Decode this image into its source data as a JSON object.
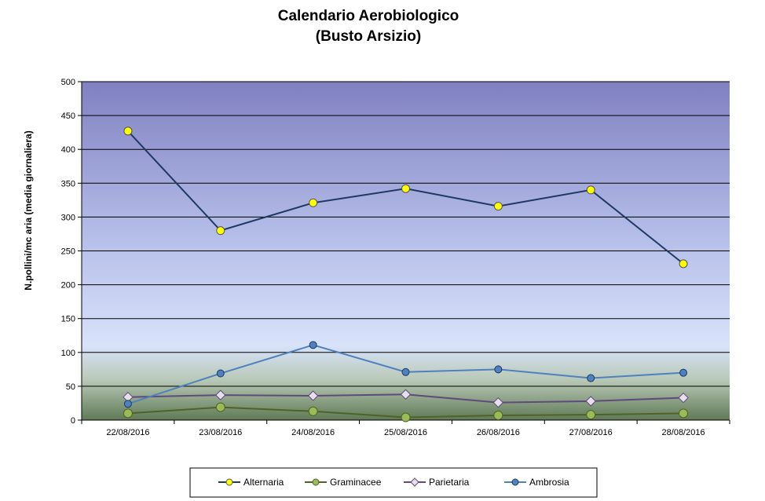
{
  "chart_data": {
    "type": "line",
    "title": "Calendario Aerobiologico",
    "subtitle": "(Busto Arsizio)",
    "xlabel": "",
    "ylabel": "N.pollini/mc aria (media giornaliera)",
    "ylim": [
      0,
      500
    ],
    "yticks": [
      "0",
      "50",
      "100",
      "150",
      "200",
      "250",
      "300",
      "350",
      "400",
      "450",
      "500"
    ],
    "categories": [
      "22/08/2016",
      "23/08/2016",
      "24/08/2016",
      "25/08/2016",
      "26/08/2016",
      "27/08/2016",
      "28/08/2016"
    ],
    "grid": true,
    "legend_position": "bottom",
    "series": [
      {
        "name": "Alternaria",
        "values": [
          427,
          280,
          321,
          342,
          316,
          340,
          231
        ],
        "line_color": "#1f3864",
        "marker": "circle",
        "marker_fill": "#ffff00",
        "marker_stroke": "#555555"
      },
      {
        "name": "Graminacee",
        "values": [
          10,
          19,
          13,
          4,
          7,
          8,
          10
        ],
        "line_color": "#4f6228",
        "marker": "circle",
        "marker_fill": "#9bbb59",
        "marker_stroke": "#4f6228"
      },
      {
        "name": "Parietaria",
        "values": [
          34,
          37,
          36,
          38,
          26,
          28,
          33
        ],
        "line_color": "#604a7b",
        "marker": "diamond",
        "marker_fill": "#e6e0ec",
        "marker_stroke": "#604a7b"
      },
      {
        "name": "Ambrosia",
        "values": [
          24,
          69,
          111,
          71,
          75,
          62,
          70
        ],
        "line_color": "#4f81bd",
        "marker": "circle",
        "marker_fill": "#4f81bd",
        "marker_stroke": "#1f3864"
      }
    ]
  }
}
